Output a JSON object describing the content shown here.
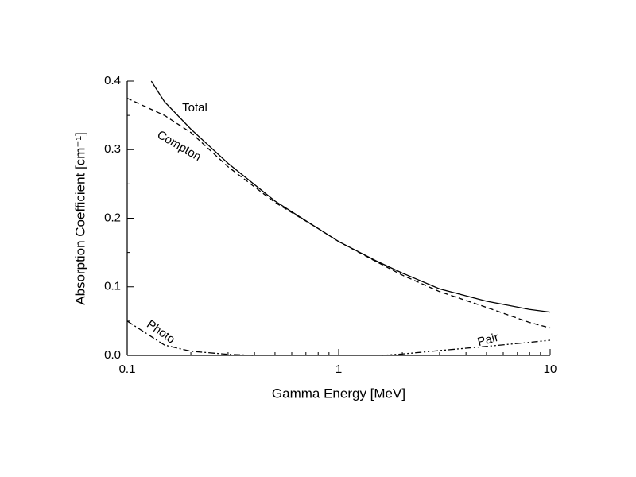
{
  "chart_data": {
    "type": "line",
    "xlabel": "Gamma Energy [MeV]",
    "ylabel": "Absorption Coefficient [cm⁻¹]",
    "xscale": "log",
    "xlim": [
      0.1,
      10
    ],
    "xticks": [
      0.1,
      1,
      10
    ],
    "xminorticks": [
      0.2,
      0.3,
      0.4,
      0.5,
      0.6,
      0.7,
      0.8,
      0.9,
      2,
      3,
      4,
      5,
      6,
      7,
      8,
      9
    ],
    "ylim": [
      0,
      0.4
    ],
    "yticks": [
      {
        "value": 0,
        "label": "0.0"
      },
      0.1,
      0.2,
      0.3,
      0.4
    ],
    "yminorticks": [
      0.05,
      0.15,
      0.25,
      0.35
    ],
    "series": [
      {
        "name": "Total",
        "color": "#000000",
        "dash": "solid",
        "x": [
          0.13,
          0.15,
          0.2,
          0.3,
          0.5,
          0.8,
          1,
          1.5,
          2,
          3,
          5,
          8,
          10
        ],
        "values": [
          0.4,
          0.37,
          0.33,
          0.28,
          0.225,
          0.185,
          0.166,
          0.138,
          0.12,
          0.097,
          0.079,
          0.067,
          0.063
        ]
      },
      {
        "name": "Compton",
        "color": "#000000",
        "dash": "dashed",
        "x": [
          0.1,
          0.15,
          0.2,
          0.3,
          0.5,
          0.8,
          1,
          1.5,
          2,
          3,
          5,
          8,
          10
        ],
        "values": [
          0.375,
          0.35,
          0.325,
          0.275,
          0.223,
          0.185,
          0.166,
          0.137,
          0.117,
          0.093,
          0.07,
          0.048,
          0.04
        ]
      },
      {
        "name": "Photo",
        "color": "#000000",
        "dash": "dashdot",
        "x": [
          0.1,
          0.15,
          0.2,
          0.3,
          0.4
        ],
        "values": [
          0.05,
          0.015,
          0.006,
          0.0015,
          0
        ]
      },
      {
        "name": "Pair",
        "color": "#000000",
        "dash": "dashdotdot",
        "x": [
          1.6,
          2,
          3,
          5,
          8,
          10
        ],
        "values": [
          0,
          0.002,
          0.007,
          0.013,
          0.019,
          0.022
        ]
      }
    ]
  }
}
